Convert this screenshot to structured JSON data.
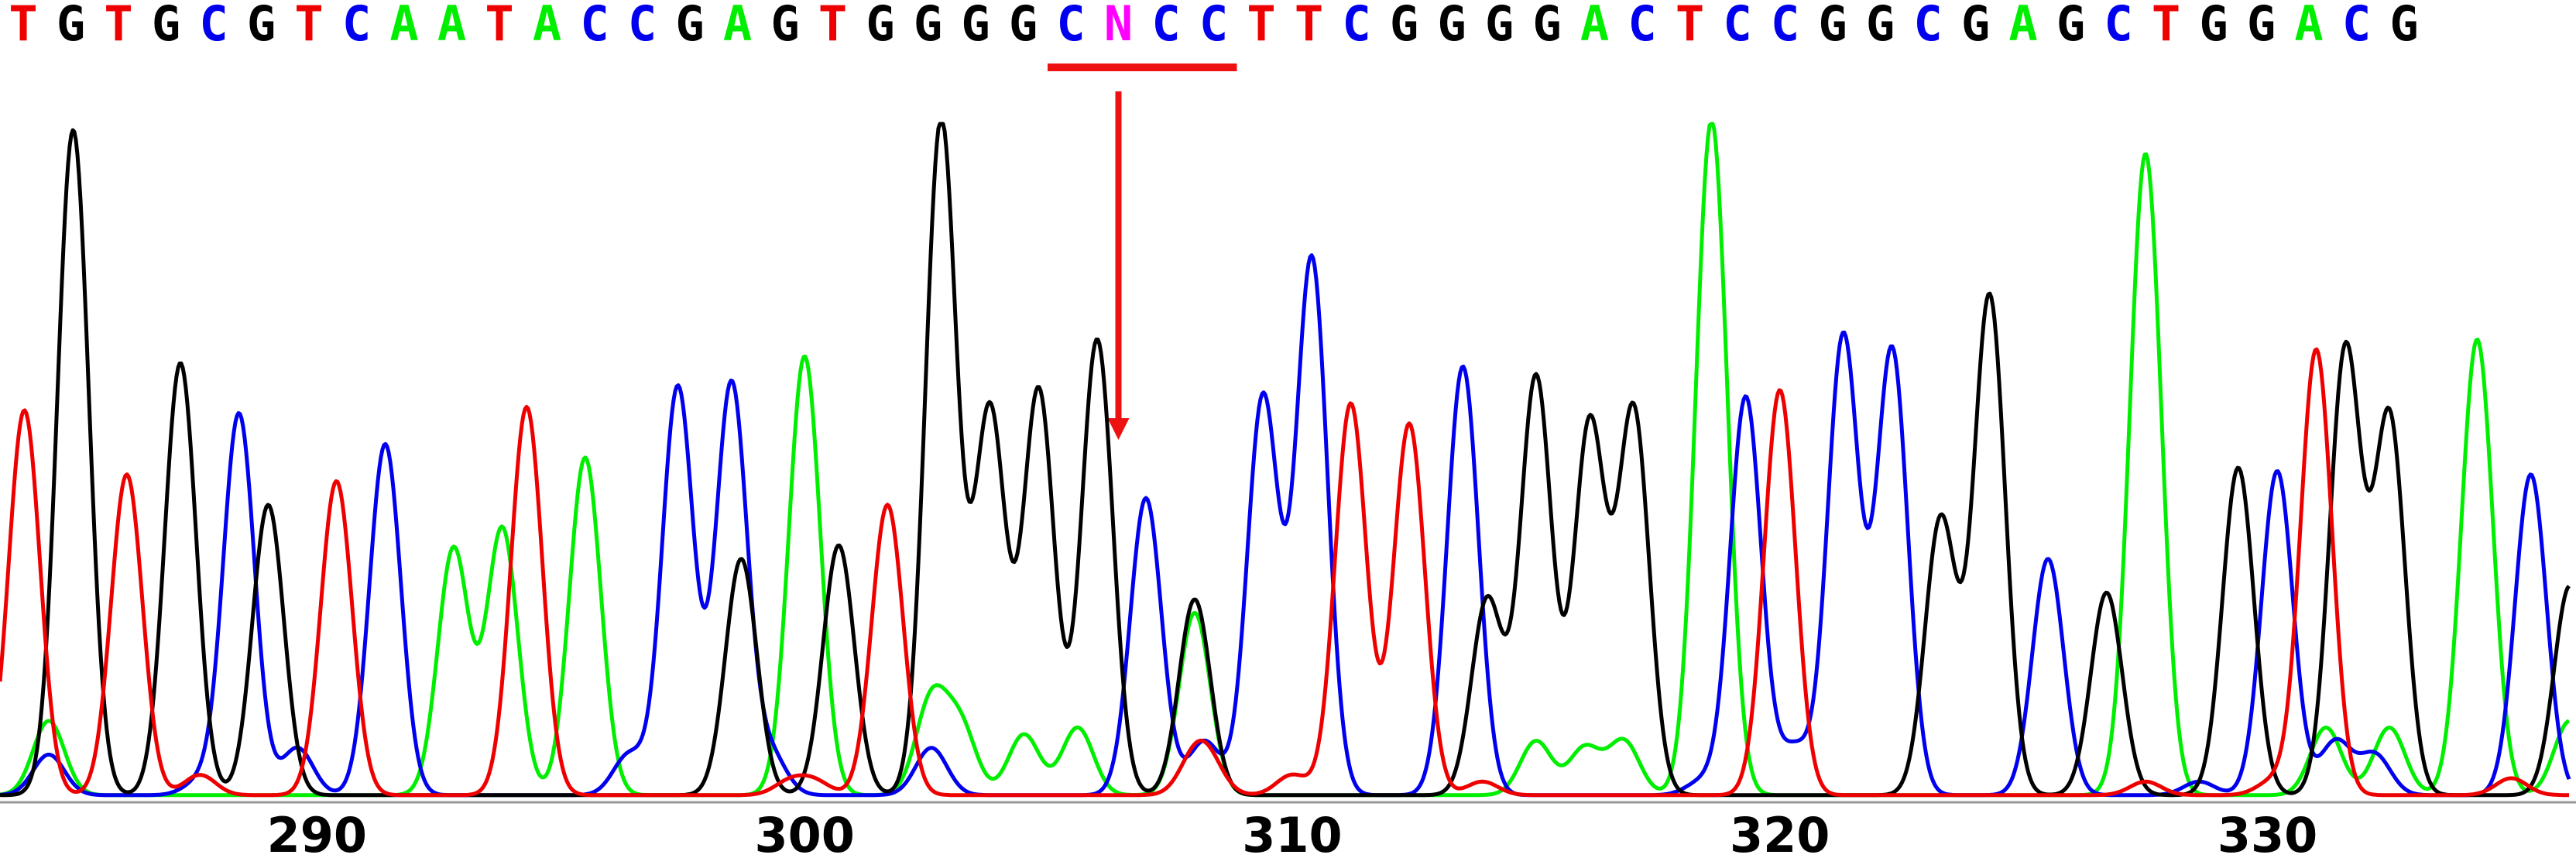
{
  "colors": {
    "A": "#00ee00",
    "C": "#0000ee",
    "G": "#000000",
    "T": "#ee0000",
    "N": "#ff00ff",
    "annotation": "#ee1111",
    "axis": "#999999"
  },
  "chart_data": {
    "type": "line",
    "title": "",
    "xlabel": "",
    "ylabel": "",
    "xlim": [
      283.5,
      336.2
    ],
    "ylim": [
      0,
      1000
    ],
    "x_ticks": [
      290,
      300,
      310,
      320,
      330
    ],
    "x_tick_labels": [
      "290",
      "300",
      "310",
      "320",
      "330"
    ],
    "sequence": [
      "T",
      "G",
      "T",
      "G",
      "C",
      "G",
      "T",
      "C",
      "A",
      "A",
      "T",
      "A",
      "C",
      "C",
      "G",
      "A",
      "G",
      "T",
      "G",
      "G",
      "G",
      "G",
      "C",
      "N",
      "C",
      "C",
      "T",
      "T",
      "C",
      "G",
      "G",
      "G",
      "G",
      "A",
      "C",
      "T",
      "C",
      "C",
      "G",
      "G",
      "C",
      "G",
      "A",
      "G",
      "C",
      "T",
      "G",
      "G",
      "A",
      "C",
      "G"
    ],
    "sequence_positions": [
      283.9,
      284.9,
      286.1,
      287.1,
      288.3,
      289.3,
      290.6,
      291.6,
      292.9,
      293.9,
      295.1,
      296.3,
      297.5,
      298.5,
      299.7,
      301.1,
      302.3,
      303.5,
      304.7,
      305.7,
      306.8,
      307.8,
      308.9,
      310.0,
      311.0,
      312.0,
      313.3,
      314.3,
      315.4,
      316.6,
      317.6,
      318.6,
      319.6,
      321.0,
      322.0,
      323.3,
      324.4,
      325.4,
      326.6,
      327.6,
      328.7,
      329.9,
      331.1,
      332.1,
      333.2,
      334.4,
      335.5,
      336.5,
      337.8,
      338.8,
      339.8
    ],
    "annotation": {
      "label_index": 23,
      "underline_from": 308.9,
      "underline_to": 311.0,
      "arrow_x": 309.9,
      "arrow_from": 1200,
      "arrow_to": 600
    },
    "series": [
      {
        "base": "A",
        "peaks": [
          [
            284.5,
            110
          ],
          [
            292.8,
            365
          ],
          [
            293.8,
            395
          ],
          [
            295.5,
            500
          ],
          [
            300.0,
            650
          ],
          [
            302.6,
            140
          ],
          [
            303.2,
            100
          ],
          [
            304.5,
            90
          ],
          [
            305.6,
            100
          ],
          [
            308.0,
            270
          ],
          [
            315.0,
            80
          ],
          [
            316.0,
            70
          ],
          [
            316.8,
            80
          ],
          [
            318.6,
            1000
          ],
          [
            327.5,
            950
          ],
          [
            331.2,
            100
          ],
          [
            332.5,
            100
          ],
          [
            334.3,
            675
          ],
          [
            336.2,
            110
          ]
        ]
      },
      {
        "base": "C",
        "peaks": [
          [
            284.5,
            60
          ],
          [
            287.6,
            20
          ],
          [
            288.4,
            565
          ],
          [
            289.6,
            70
          ],
          [
            291.4,
            520
          ],
          [
            296.4,
            60
          ],
          [
            297.4,
            605
          ],
          [
            298.5,
            610
          ],
          [
            299.3,
            60
          ],
          [
            302.6,
            70
          ],
          [
            307.0,
            440
          ],
          [
            308.2,
            80
          ],
          [
            309.4,
            590
          ],
          [
            310.4,
            795
          ],
          [
            313.5,
            635
          ],
          [
            318.4,
            20
          ],
          [
            319.3,
            590
          ],
          [
            320.3,
            70
          ],
          [
            321.3,
            680
          ],
          [
            322.3,
            660
          ],
          [
            325.5,
            350
          ],
          [
            328.6,
            20
          ],
          [
            330.2,
            480
          ],
          [
            331.4,
            80
          ],
          [
            332.2,
            60
          ],
          [
            335.4,
            475
          ]
        ]
      },
      {
        "base": "G",
        "peaks": [
          [
            285.0,
            985
          ],
          [
            287.2,
            640
          ],
          [
            289.0,
            430
          ],
          [
            298.7,
            350
          ],
          [
            300.7,
            370
          ],
          [
            302.8,
            1000
          ],
          [
            303.8,
            570
          ],
          [
            304.8,
            600
          ],
          [
            306.0,
            675
          ],
          [
            308.0,
            290
          ],
          [
            314.0,
            290
          ],
          [
            315.0,
            620
          ],
          [
            316.1,
            550
          ],
          [
            317.0,
            570
          ],
          [
            324.3,
            740
          ],
          [
            323.3,
            410
          ],
          [
            326.7,
            300
          ],
          [
            329.4,
            485
          ],
          [
            331.6,
            660
          ],
          [
            332.5,
            560
          ],
          [
            336.2,
            310
          ]
        ]
      },
      {
        "base": "T",
        "peaks": [
          [
            284.0,
            570
          ],
          [
            286.1,
            475
          ],
          [
            287.6,
            30
          ],
          [
            290.4,
            465
          ],
          [
            294.3,
            575
          ],
          [
            299.7,
            20
          ],
          [
            300.2,
            20
          ],
          [
            301.7,
            430
          ],
          [
            308.0,
            50
          ],
          [
            308.3,
            40
          ],
          [
            310.0,
            30
          ],
          [
            311.2,
            580
          ],
          [
            312.4,
            550
          ],
          [
            313.9,
            20
          ],
          [
            320.0,
            600
          ],
          [
            327.5,
            20
          ],
          [
            330.1,
            20
          ],
          [
            331.0,
            660
          ],
          [
            335.0,
            25
          ]
        ]
      }
    ]
  }
}
